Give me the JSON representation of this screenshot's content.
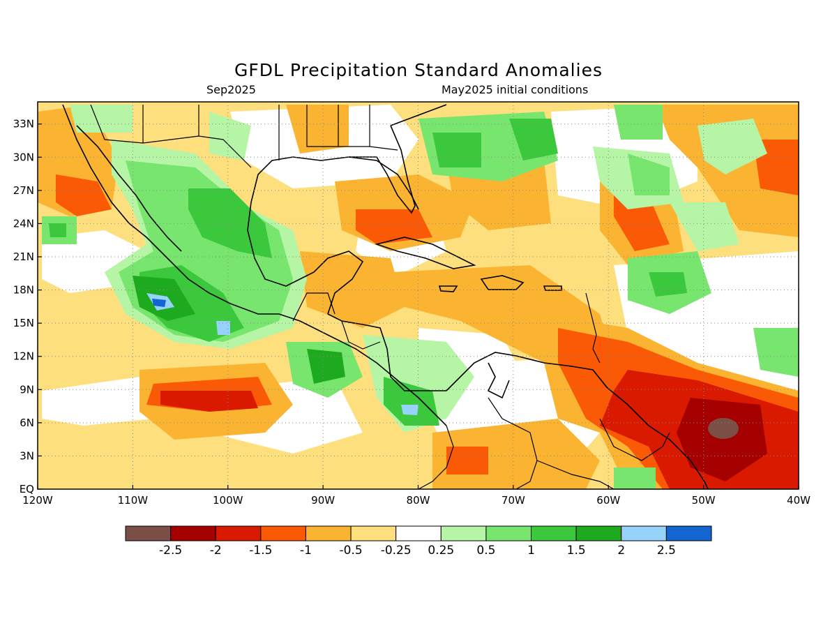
{
  "title": "GFDL Precipitation Standard Anomalies",
  "subtitle_left": "Sep2025",
  "subtitle_right": "May2025 initial conditions",
  "map": {
    "lon_range": [
      -120,
      -40
    ],
    "lat_range": [
      0,
      35
    ],
    "lon_labels": [
      "120W",
      "110W",
      "100W",
      "90W",
      "80W",
      "70W",
      "60W",
      "50W",
      "40W"
    ],
    "lat_labels": [
      "EQ",
      "3N",
      "6N",
      "9N",
      "12N",
      "15N",
      "18N",
      "21N",
      "24N",
      "27N",
      "30N",
      "33N"
    ]
  },
  "colorbar": {
    "colors": [
      "#7b4f46",
      "#a50000",
      "#d91a00",
      "#fa5a05",
      "#fbb432",
      "#fde07d",
      "#ffffff",
      "#b5f5a5",
      "#78e66e",
      "#3cc83c",
      "#1eaa1e",
      "#96d2fa",
      "#1464d2"
    ],
    "labels": [
      "-2.5",
      "-2",
      "-1.5",
      "-1",
      "-0.5",
      "-0.25",
      "0.25",
      "0.5",
      "1",
      "1.5",
      "2",
      "2.5"
    ]
  },
  "chart_data": {
    "type": "heatmap",
    "title": "GFDL Precipitation Standard Anomalies",
    "variable": "precipitation standard anomaly",
    "xlim": [
      -120,
      -40
    ],
    "ylim": [
      0,
      35
    ],
    "grid": true,
    "levels": [
      -2.5,
      -2,
      -1.5,
      -1,
      -0.5,
      -0.25,
      0.25,
      0.5,
      1,
      1.5,
      2,
      2.5
    ],
    "features": [
      {
        "region": "Pacific west of Mexico near 107W 17N",
        "anomaly": 2.5
      },
      {
        "region": "Western Mexico / Sierra Madre",
        "anomaly": 1.5
      },
      {
        "region": "Pacific off Central America near 88W 11N",
        "anomaly": 1.5
      },
      {
        "region": "Panama / Costa Rica near 82W 7N",
        "anomaly": 2.0
      },
      {
        "region": "Eastern Pacific near 100W 8N",
        "anomaly": -2.0
      },
      {
        "region": "Gulf of Mexico east / Florida Straits",
        "anomaly": -1.0
      },
      {
        "region": "Eastern Caribbean and Lesser Antilles",
        "anomaly": -1.5
      },
      {
        "region": "Guianas / Atlantic near 48W 6N",
        "anomaly": -2.5
      },
      {
        "region": "Western Atlantic near 75W 30N",
        "anomaly": 1.5
      }
    ]
  }
}
